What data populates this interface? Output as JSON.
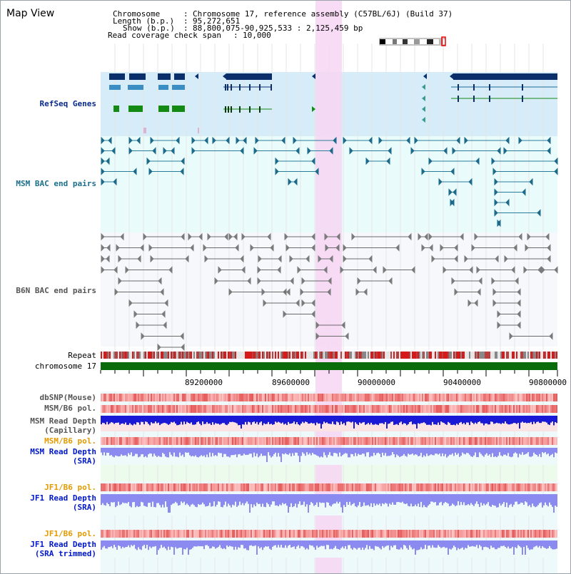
{
  "page": {
    "title": "Map View"
  },
  "header": {
    "chromosome_label": "Chromosome",
    "chromosome_value": "Chromosome 17, reference assembly (C57BL/6J) (Build 37)",
    "length_label": "Length (b.p.)",
    "length_value": "95,272,651",
    "show_label": "Show (b.p.)",
    "show_value": "88,800,075-90,925,533 : 2,125,459 bp",
    "coverage_label": "Read coverage check span",
    "coverage_value": "10,000"
  },
  "tracks": {
    "refseq": "RefSeq Genes",
    "msm_bac": "MSM BAC end pairs",
    "b6n_bac": "B6N BAC end pairs",
    "repeat": "Repeat",
    "chromosome": "chromosome 17",
    "dbsnp": "dbSNP(Mouse)",
    "msm_b6_pol_1": "MSM/B6 pol.",
    "msm_depth_cap_1": "MSM Read Depth",
    "msm_depth_cap_2": "(Capillary)",
    "msm_b6_pol_2": "MSM/B6 pol.",
    "msm_depth_sra_1": "MSM Read Depth",
    "msm_depth_sra_2": "(SRA)",
    "jf1_b6_pol_1": "JF1/B6 pol.",
    "jf1_depth_sra_1": "JF1 Read Depth",
    "jf1_depth_sra_2": "(SRA)",
    "jf1_b6_pol_2": "JF1/B6 pol.",
    "jf1_depth_trim_1": "JF1 Read Depth",
    "jf1_depth_trim_2": "(SRA trimmed)"
  },
  "axis": {
    "ticks": [
      "89200000",
      "89600000",
      "90000000",
      "90400000",
      "90800000"
    ]
  },
  "colors": {
    "refseq_bg": "#d6ecf8",
    "msm_bg": "#e9fbfb",
    "b6n_bg": "#f7f8fb",
    "highlight": "#f7d6f3",
    "chromosome_bar": "#0a6b0a",
    "depth_blue": "#1a1ad6",
    "depth_light": "#8a8af0"
  },
  "icons": {
    "ideogram": "chromosome-ideogram-icon"
  }
}
